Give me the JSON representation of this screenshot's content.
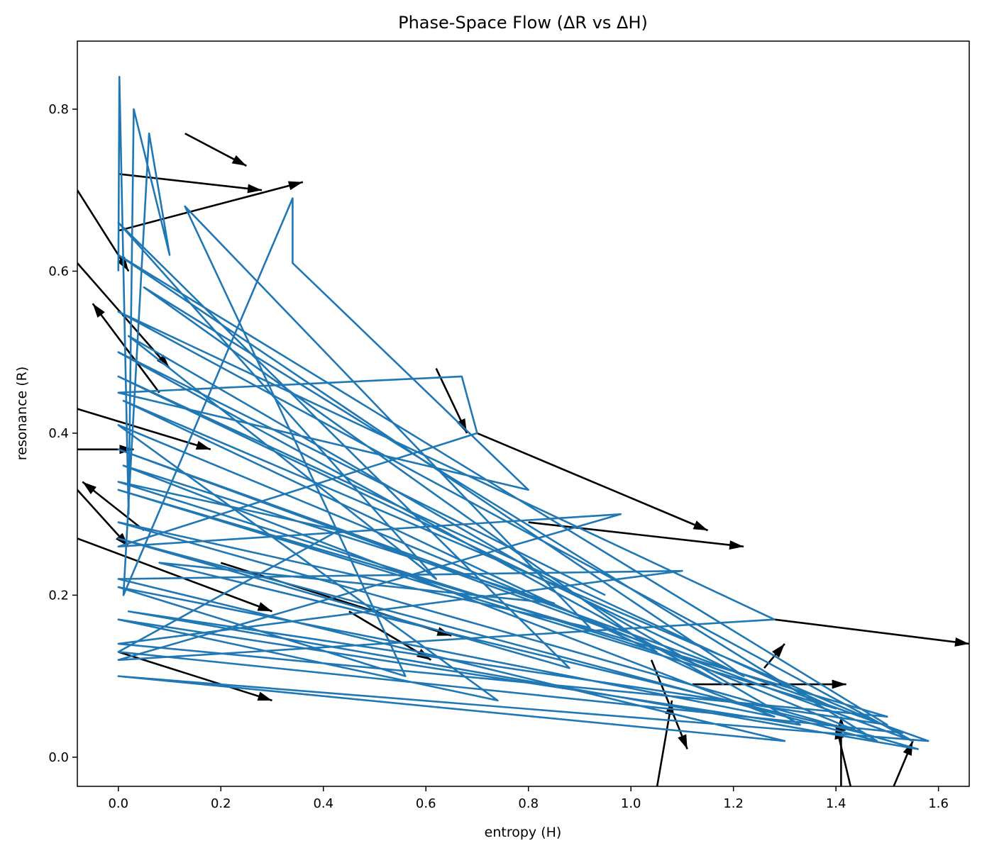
{
  "chart_data": {
    "type": "line",
    "title": "Phase-Space Flow (ΔR vs ΔH)",
    "xlabel": "entropy (H)",
    "ylabel": "resonance (R)",
    "xlim": [
      -0.08,
      1.66
    ],
    "ylim": [
      -0.036,
      0.884
    ],
    "xticks": [
      0.0,
      0.2,
      0.4,
      0.6,
      0.8,
      1.0,
      1.2,
      1.4,
      1.6
    ],
    "xtick_labels": [
      "0.0",
      "0.2",
      "0.4",
      "0.6",
      "0.8",
      "1.0",
      "1.2",
      "1.4",
      "1.6"
    ],
    "yticks": [
      0.0,
      0.2,
      0.4,
      0.6,
      0.8
    ],
    "ytick_labels": [
      "0.0",
      "0.2",
      "0.4",
      "0.6",
      "0.8"
    ],
    "grid": false,
    "legend": "none",
    "colors": {
      "trajectory": "#1f77b4",
      "arrows": "#000000"
    },
    "series": [
      {
        "kind": "trajectory",
        "color": "#1f77b4",
        "points": [
          [
            0.0,
            0.6
          ],
          [
            0.002,
            0.84
          ],
          [
            0.02,
            0.3
          ],
          [
            0.03,
            0.8
          ],
          [
            0.1,
            0.62
          ],
          [
            0.06,
            0.77
          ],
          [
            0.01,
            0.2
          ],
          [
            0.34,
            0.69
          ],
          [
            0.34,
            0.61
          ],
          [
            0.8,
            0.33
          ],
          [
            0.0,
            0.45
          ],
          [
            0.67,
            0.47
          ],
          [
            0.7,
            0.4
          ],
          [
            0.0,
            0.26
          ],
          [
            0.98,
            0.3
          ],
          [
            0.0,
            0.12
          ],
          [
            1.28,
            0.17
          ],
          [
            0.0,
            0.55
          ],
          [
            1.55,
            0.02
          ],
          [
            0.0,
            0.38
          ],
          [
            1.58,
            0.02
          ],
          [
            0.0,
            0.1
          ],
          [
            1.3,
            0.02
          ],
          [
            0.0,
            0.22
          ],
          [
            1.1,
            0.23
          ],
          [
            0.0,
            0.14
          ],
          [
            1.5,
            0.05
          ],
          [
            0.0,
            0.33
          ],
          [
            1.4,
            0.06
          ],
          [
            0.0,
            0.47
          ],
          [
            1.22,
            0.1
          ],
          [
            0.0,
            0.62
          ],
          [
            1.5,
            0.04
          ],
          [
            0.02,
            0.18
          ],
          [
            1.56,
            0.01
          ],
          [
            0.0,
            0.29
          ],
          [
            0.92,
            0.16
          ],
          [
            0.13,
            0.68
          ],
          [
            0.56,
            0.1
          ],
          [
            0.0,
            0.21
          ],
          [
            1.28,
            0.05
          ],
          [
            0.01,
            0.36
          ],
          [
            0.85,
            0.19
          ],
          [
            0.08,
            0.24
          ],
          [
            1.45,
            0.03
          ],
          [
            0.0,
            0.41
          ],
          [
            0.74,
            0.07
          ],
          [
            0.0,
            0.17
          ],
          [
            1.33,
            0.04
          ],
          [
            0.02,
            0.52
          ],
          [
            0.62,
            0.22
          ],
          [
            0.0,
            0.66
          ],
          [
            0.88,
            0.11
          ],
          [
            0.0,
            0.27
          ],
          [
            1.48,
            0.02
          ],
          [
            0.05,
            0.58
          ],
          [
            1.05,
            0.13
          ],
          [
            0.0,
            0.34
          ],
          [
            0.43,
            0.28
          ],
          [
            0.0,
            0.13
          ],
          [
            1.53,
            0.03
          ],
          [
            0.01,
            0.44
          ],
          [
            1.18,
            0.09
          ],
          [
            0.0,
            0.5
          ],
          [
            0.95,
            0.2
          ]
        ]
      },
      {
        "kind": "quiver",
        "color": "#000000",
        "vectors": [
          [
            0.13,
            0.77,
            0.25,
            0.73
          ],
          [
            0.0,
            0.72,
            0.28,
            0.7
          ],
          [
            -0.08,
            0.7,
            0.02,
            0.6
          ],
          [
            -0.08,
            0.43,
            0.18,
            0.38
          ],
          [
            -0.08,
            0.38,
            0.03,
            0.38
          ],
          [
            0.08,
            0.45,
            -0.05,
            0.56
          ],
          [
            -0.08,
            0.33,
            0.02,
            0.26
          ],
          [
            0.05,
            0.28,
            -0.07,
            0.34
          ],
          [
            -0.08,
            0.27,
            0.3,
            0.18
          ],
          [
            0.0,
            0.13,
            0.3,
            0.07
          ],
          [
            0.62,
            0.48,
            0.68,
            0.4
          ],
          [
            0.7,
            0.4,
            1.15,
            0.28
          ],
          [
            0.8,
            0.29,
            1.22,
            0.26
          ],
          [
            0.2,
            0.24,
            0.65,
            0.15
          ],
          [
            0.45,
            0.18,
            0.61,
            0.12
          ],
          [
            1.28,
            0.17,
            1.66,
            0.14
          ],
          [
            1.04,
            0.12,
            1.11,
            0.01
          ],
          [
            1.12,
            0.09,
            1.42,
            0.09
          ],
          [
            1.05,
            -0.04,
            1.08,
            0.07
          ],
          [
            1.41,
            -0.04,
            1.41,
            0.05
          ],
          [
            1.43,
            -0.04,
            1.4,
            0.04
          ],
          [
            1.51,
            -0.04,
            1.55,
            0.02
          ],
          [
            1.26,
            0.11,
            1.3,
            0.14
          ],
          [
            -0.08,
            0.61,
            0.1,
            0.48
          ],
          [
            0.0,
            0.65,
            0.36,
            0.71
          ]
        ]
      }
    ]
  }
}
